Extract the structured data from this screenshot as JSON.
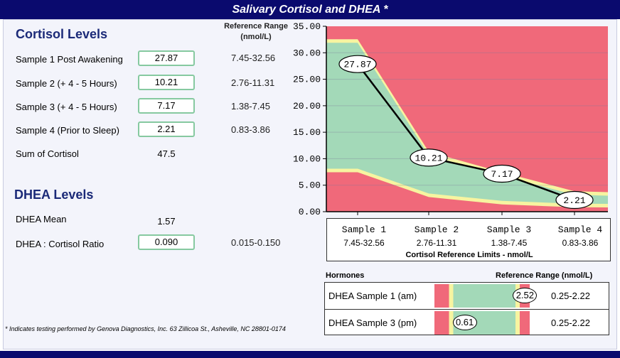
{
  "header": {
    "title": "Salivary Cortisol and DHEA *"
  },
  "cortisol": {
    "title": "Cortisol Levels",
    "ref_header": "Reference Range (nmol/L)",
    "rows": [
      {
        "label": "Sample 1 Post Awakening",
        "value": "27.87",
        "ref": "7.45-32.56"
      },
      {
        "label": "Sample 2 (+ 4 - 5 Hours)",
        "value": "10.21",
        "ref": "2.76-11.31"
      },
      {
        "label": "Sample 3 (+ 4 - 5 Hours)",
        "value": "7.17",
        "ref": "1.38-7.45"
      },
      {
        "label": "Sample 4 (Prior to Sleep)",
        "value": "2.21",
        "ref": "0.83-3.86"
      }
    ],
    "sum_label": "Sum of Cortisol",
    "sum_value": "47.5"
  },
  "dhea": {
    "title": "DHEA Levels",
    "mean_label": "DHEA Mean",
    "mean_value": "1.57",
    "ratio_label": "DHEA : Cortisol Ratio",
    "ratio_value": "0.090",
    "ratio_ref": "0.015-0.150"
  },
  "footnote": "* Indicates testing performed by Genova Diagnostics, Inc.  63 Zillicoa St., Asheville, NC 28801-0174",
  "chart_data": [
    {
      "type": "line",
      "x": [
        "Sample 1",
        "Sample 2",
        "Sample 3",
        "Sample 4"
      ],
      "ylim": [
        0,
        35
      ],
      "yticks": [
        "0.00",
        "5.00",
        "10.00",
        "15.00",
        "20.00",
        "25.00",
        "30.00",
        "35.00"
      ],
      "series": [
        {
          "values": [
            27.87,
            10.21,
            7.17,
            2.21
          ],
          "labels": [
            "27.87",
            "10.21",
            "7.17",
            "2.21"
          ]
        }
      ],
      "reference_low": [
        7.45,
        2.76,
        1.38,
        0.83
      ],
      "reference_high": [
        32.56,
        11.31,
        7.45,
        3.86
      ],
      "x_ranges": [
        "7.45-32.56",
        "2.76-11.31",
        "1.38-7.45",
        "0.83-3.86"
      ],
      "caption": "Cortisol Reference Limits - nmol/L",
      "colors": {
        "out_of_range": "#f0697a",
        "in_range": "#a3d9b8",
        "border": "#f7f4a0",
        "line": "#000000"
      }
    },
    {
      "type": "table",
      "header_left": "Hormones",
      "header_right": "Reference Range (nmol/L)",
      "rows": [
        {
          "label": "DHEA Sample 1 (am)",
          "value": 2.52,
          "value_text": "2.52",
          "range": "0.25-2.22"
        },
        {
          "label": "DHEA Sample 3 (pm)",
          "value": 0.61,
          "value_text": "0.61",
          "range": "0.25-2.22"
        }
      ]
    }
  ]
}
